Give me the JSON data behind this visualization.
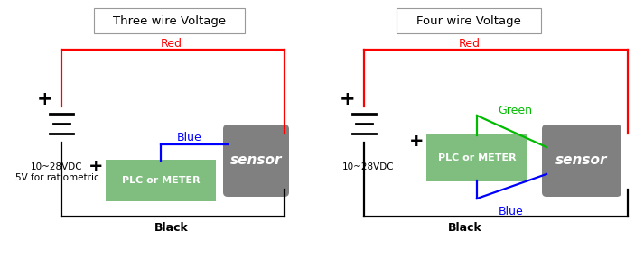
{
  "fig_width": 7.13,
  "fig_height": 2.87,
  "dpi": 100,
  "bg_color": "#ffffff",
  "left_title": "Three wire Voltage",
  "right_title": "Four wire Voltage",
  "left_voltage_label": "10~28VDC\n5V for ratiometric",
  "right_voltage_label": "10~28VDC",
  "black_label": "Black",
  "red_label": "Red",
  "blue_label": "Blue",
  "green_label": "Green",
  "sensor_label": "sensor",
  "plc_label": "PLC or METER",
  "wire_colors": {
    "red": "#ff0000",
    "blue": "#0000ff",
    "black": "#000000",
    "green": "#00bb00"
  },
  "sensor_box_color": "#808080",
  "plc_box_color": "#7fbe7f",
  "title_box_color": "#ffffff",
  "title_border_color": "#999999"
}
